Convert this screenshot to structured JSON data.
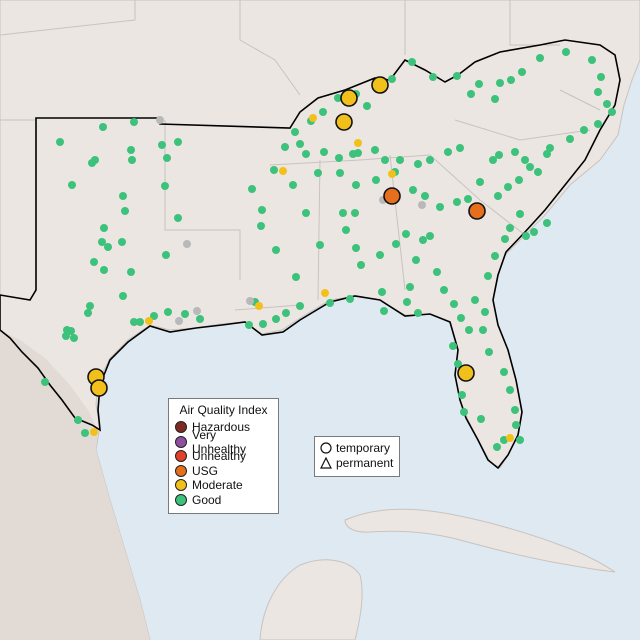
{
  "map": {
    "region": "Southeastern United States",
    "colors": {
      "water": "#dfe9f2",
      "land": "#ebe6e2",
      "mexico_land": "#e2dbd5",
      "border": "#c9c3bf",
      "highlight_border": "#000000"
    }
  },
  "aqi_legend": {
    "title": "Air Quality Index",
    "items": [
      {
        "label": "Hazardous",
        "color": "#7e2a22"
      },
      {
        "label": "Very Unhealthy",
        "color": "#8e4fa0"
      },
      {
        "label": "Unhealthy",
        "color": "#e2402a"
      },
      {
        "label": "USG",
        "color": "#e56f1d"
      },
      {
        "label": "Moderate",
        "color": "#f2c01b"
      },
      {
        "label": "Good",
        "color": "#3cc27a"
      }
    ],
    "no_data_color": "#b9b9b9"
  },
  "type_legend": {
    "items": [
      {
        "label": "temporary",
        "shape": "circle"
      },
      {
        "label": "permanent",
        "shape": "triangle"
      }
    ]
  }
}
